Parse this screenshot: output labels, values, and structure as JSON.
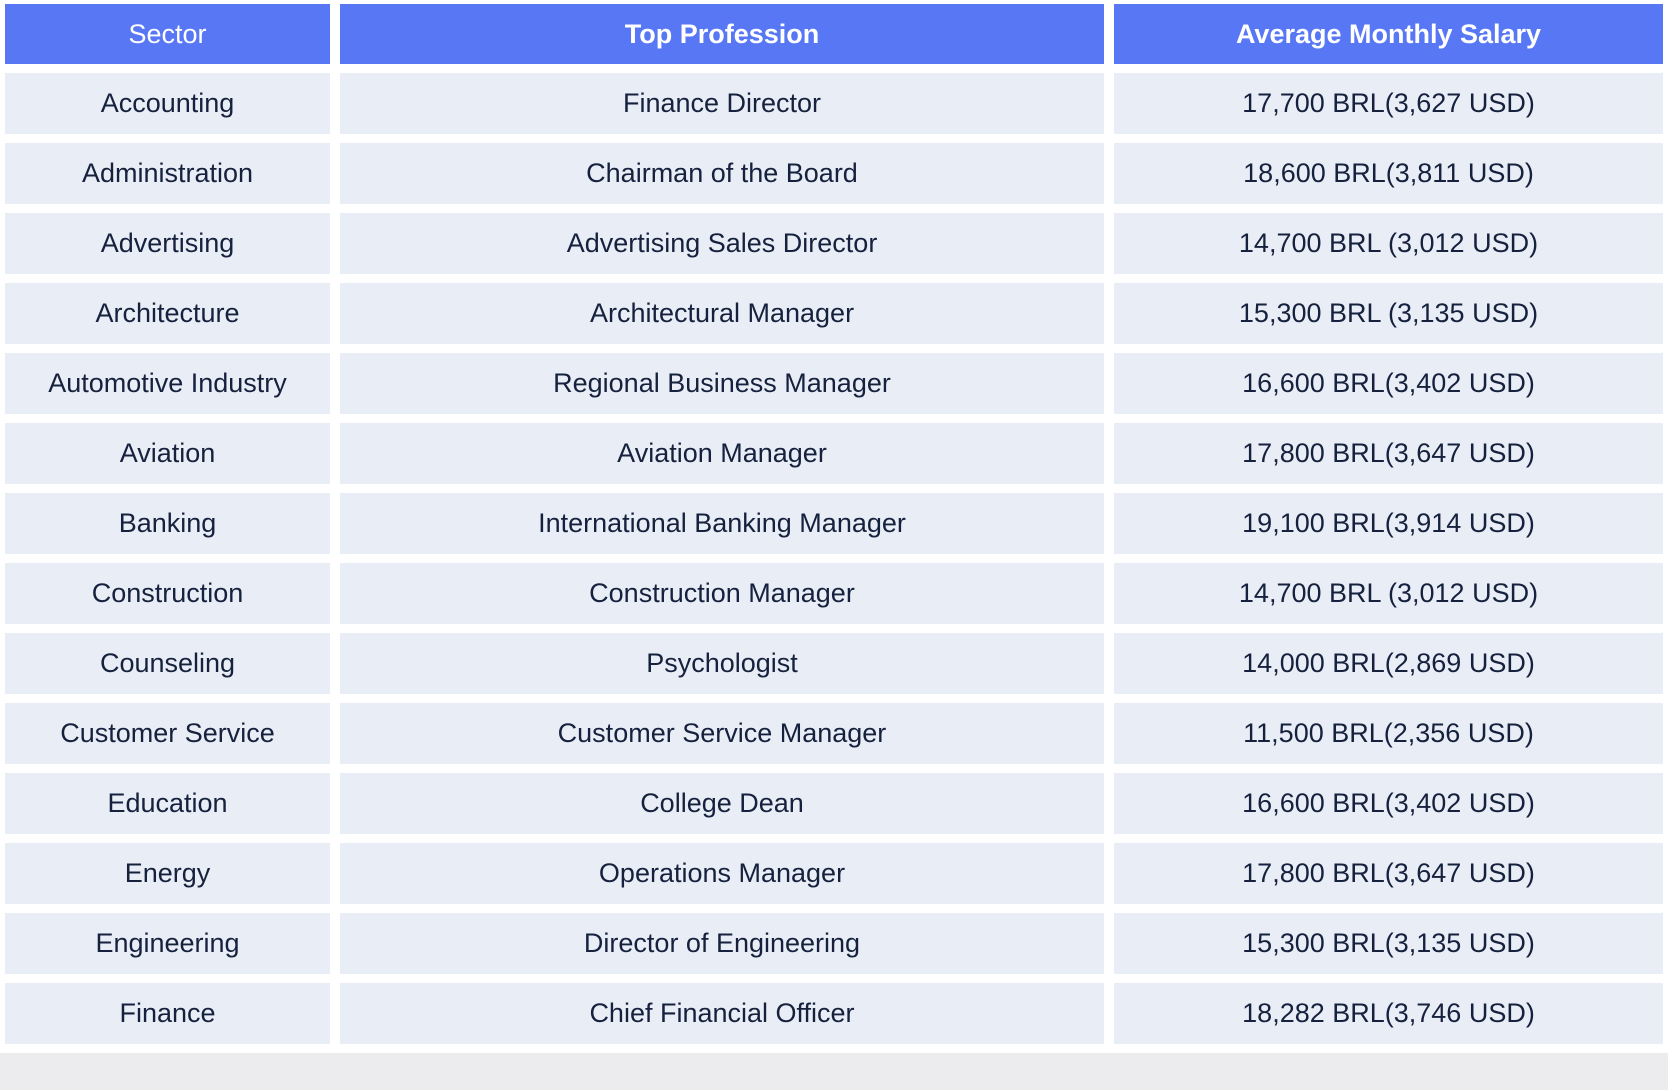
{
  "table": {
    "headers": {
      "sector": "Sector",
      "profession": "Top Profession",
      "salary": "Average Monthly Salary"
    },
    "rows": [
      {
        "sector": "Accounting",
        "profession": "Finance Director",
        "salary": "17,700 BRL(3,627 USD)"
      },
      {
        "sector": "Administration",
        "profession": "Chairman of the Board",
        "salary": "18,600 BRL(3,811 USD)"
      },
      {
        "sector": "Advertising",
        "profession": "Advertising Sales Director",
        "salary": "14,700 BRL (3,012 USD)"
      },
      {
        "sector": "Architecture",
        "profession": "Architectural Manager",
        "salary": "15,300 BRL (3,135 USD)"
      },
      {
        "sector": "Automotive Industry",
        "profession": "Regional Business Manager",
        "salary": "16,600 BRL(3,402 USD)"
      },
      {
        "sector": "Aviation",
        "profession": "Aviation Manager",
        "salary": "17,800 BRL(3,647 USD)"
      },
      {
        "sector": "Banking",
        "profession": "International Banking Manager",
        "salary": "19,100 BRL(3,914 USD)"
      },
      {
        "sector": "Construction",
        "profession": "Construction Manager",
        "salary": "14,700 BRL (3,012 USD)"
      },
      {
        "sector": "Counseling",
        "profession": "Psychologist",
        "salary": "14,000 BRL(2,869 USD)"
      },
      {
        "sector": "Customer Service",
        "profession": "Customer Service Manager",
        "salary": "11,500 BRL(2,356 USD)"
      },
      {
        "sector": "Education",
        "profession": "College Dean",
        "salary": "16,600 BRL(3,402 USD)"
      },
      {
        "sector": "Energy",
        "profession": "Operations Manager",
        "salary": "17,800 BRL(3,647 USD)"
      },
      {
        "sector": "Engineering",
        "profession": "Director of Engineering",
        "salary": "15,300 BRL(3,135 USD)"
      },
      {
        "sector": "Finance",
        "profession": "Chief Financial Officer",
        "salary": "18,282 BRL(3,746 USD)"
      }
    ]
  },
  "colors": {
    "header_bg": "#5777f5",
    "cell_bg": "#e8edf6",
    "text": "#16213d"
  }
}
